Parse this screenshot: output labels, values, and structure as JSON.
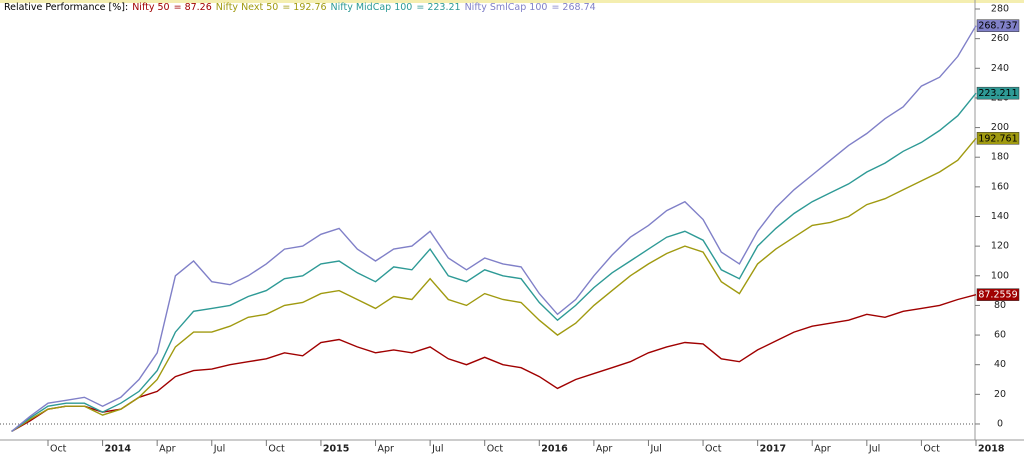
{
  "chart_data": {
    "type": "line",
    "title": "Relative Performance [%]:",
    "categories": [
      null,
      null,
      "Oct",
      null,
      null,
      "2014",
      null,
      null,
      "Apr",
      null,
      null,
      "Jul",
      null,
      null,
      "Oct",
      null,
      null,
      "2015",
      null,
      null,
      "Apr",
      null,
      null,
      "Jul",
      null,
      null,
      "Oct",
      null,
      null,
      "2016",
      null,
      null,
      "Apr",
      null,
      null,
      "Jul",
      null,
      null,
      "Oct",
      null,
      null,
      "2017",
      null,
      null,
      "Apr",
      null,
      null,
      "Jul",
      null,
      null,
      "Oct",
      null,
      null,
      "2018"
    ],
    "series": [
      {
        "name": "Nifty 50",
        "color": "#a00000",
        "tag_text": "#ffffff",
        "legend_value": "= 87.26",
        "end_label": "87.2559",
        "values": [
          -5,
          2,
          10,
          12,
          12,
          8,
          10,
          18,
          22,
          32,
          36,
          37,
          40,
          42,
          44,
          48,
          46,
          55,
          57,
          52,
          48,
          50,
          48,
          52,
          44,
          40,
          45,
          40,
          38,
          32,
          24,
          30,
          34,
          38,
          42,
          48,
          52,
          55,
          54,
          44,
          42,
          50,
          56,
          62,
          66,
          68,
          70,
          74,
          72,
          76,
          78,
          80,
          84,
          87.2559
        ]
      },
      {
        "name": "Nifty Next 50",
        "color": "#a09a10",
        "tag_text": "#000000",
        "legend_value": "= 192.76",
        "end_label": "192.761",
        "values": [
          -5,
          3,
          10,
          12,
          12,
          6,
          10,
          18,
          30,
          52,
          62,
          62,
          66,
          72,
          74,
          80,
          82,
          88,
          90,
          84,
          78,
          86,
          84,
          98,
          84,
          80,
          88,
          84,
          82,
          70,
          60,
          68,
          80,
          90,
          100,
          108,
          115,
          120,
          116,
          96,
          88,
          108,
          118,
          126,
          134,
          136,
          140,
          148,
          152,
          158,
          164,
          170,
          178,
          192.761
        ]
      },
      {
        "name": "Nifty MidCap 100",
        "color": "#2e9a96",
        "tag_text": "#000000",
        "legend_value": "= 223.21",
        "end_label": "223.211",
        "values": [
          -5,
          4,
          12,
          14,
          14,
          8,
          14,
          22,
          36,
          62,
          76,
          78,
          80,
          86,
          90,
          98,
          100,
          108,
          110,
          102,
          96,
          106,
          104,
          118,
          100,
          96,
          104,
          100,
          98,
          82,
          70,
          80,
          92,
          102,
          110,
          118,
          126,
          130,
          124,
          104,
          98,
          120,
          132,
          142,
          150,
          156,
          162,
          170,
          176,
          184,
          190,
          198,
          208,
          223.211
        ]
      },
      {
        "name": "Nifty SmlCap 100",
        "color": "#8080c8",
        "tag_text": "#000000",
        "legend_value": "= 268.74",
        "end_label": "268.737",
        "values": [
          -5,
          5,
          14,
          16,
          18,
          12,
          18,
          30,
          48,
          100,
          110,
          96,
          94,
          100,
          108,
          118,
          120,
          128,
          132,
          118,
          110,
          118,
          120,
          130,
          112,
          104,
          112,
          108,
          106,
          88,
          74,
          84,
          100,
          114,
          126,
          134,
          144,
          150,
          138,
          116,
          108,
          130,
          146,
          158,
          168,
          178,
          188,
          196,
          206,
          214,
          228,
          234,
          248,
          268.737
        ]
      }
    ],
    "ylim": [
      -10,
      285
    ],
    "yticks": [
      0,
      20,
      40,
      60,
      80,
      100,
      120,
      140,
      160,
      180,
      200,
      220,
      240,
      260,
      280
    ],
    "zero_line": true
  }
}
